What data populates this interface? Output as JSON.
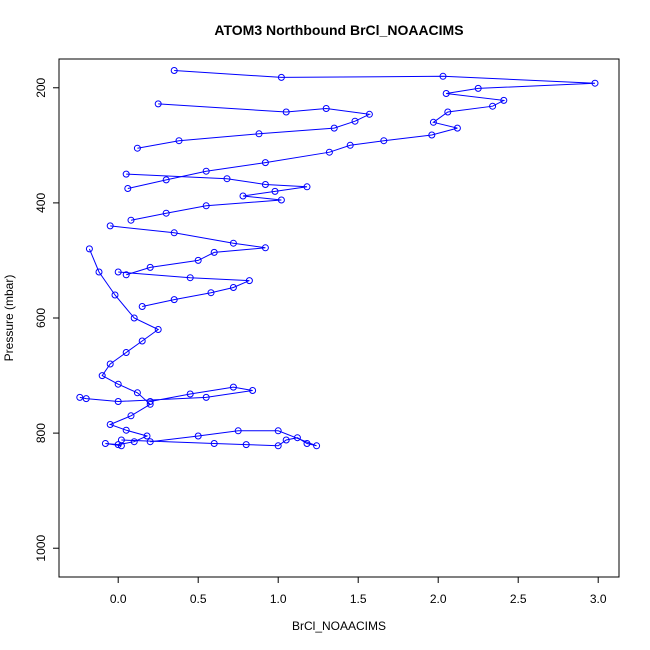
{
  "chart_data": {
    "type": "line",
    "title": "ATOM3 Northbound BrCl_NOAACIMS",
    "xlabel": "BrCl_NOAACIMS",
    "ylabel": "Pressure (mbar)",
    "xlim": [
      -0.37,
      3.13
    ],
    "ylim": [
      1050,
      150
    ],
    "y_reversed": true,
    "x_ticks": [
      "0.0",
      "0.5",
      "1.0",
      "1.5",
      "2.0",
      "2.5",
      "3.0"
    ],
    "x_tick_values": [
      0.0,
      0.5,
      1.0,
      1.5,
      2.0,
      2.5,
      3.0
    ],
    "y_ticks": [
      "200",
      "400",
      "600",
      "800",
      "1000"
    ],
    "y_tick_values": [
      200,
      400,
      600,
      800,
      1000
    ],
    "grid": false,
    "legend": "none",
    "marker": "open-circle",
    "color": "#0000ff",
    "series": [
      {
        "x": [
          0.35,
          1.02,
          2.03,
          2.98,
          2.25,
          2.05,
          2.41,
          2.34,
          2.06,
          1.97,
          2.12,
          1.96,
          1.66,
          1.45,
          1.32,
          0.92,
          0.55,
          0.3,
          0.06
        ],
        "y": [
          170,
          182,
          180,
          192,
          201,
          210,
          222,
          232,
          242,
          260,
          270,
          282,
          292,
          300,
          312,
          330,
          345,
          360,
          375
        ]
      },
      {
        "x": [
          0.25,
          1.05,
          1.3,
          1.57,
          1.48,
          1.35,
          0.88,
          0.38,
          0.12
        ],
        "y": [
          228,
          242,
          236,
          246,
          258,
          270,
          280,
          292,
          305
        ]
      },
      {
        "x": [
          0.05,
          0.68,
          0.92,
          1.18,
          0.98,
          0.78,
          1.02,
          0.55,
          0.3,
          0.08
        ],
        "y": [
          350,
          358,
          368,
          372,
          380,
          388,
          395,
          405,
          418,
          430
        ]
      },
      {
        "x": [
          -0.05,
          0.35,
          0.72,
          0.92,
          0.6,
          0.5,
          0.2,
          0.05
        ],
        "y": [
          440,
          452,
          470,
          478,
          486,
          500,
          512,
          525
        ]
      },
      {
        "x": [
          0.0,
          0.45,
          0.82,
          0.72,
          0.58,
          0.35,
          0.15
        ],
        "y": [
          520,
          530,
          535,
          547,
          556,
          568,
          580
        ]
      },
      {
        "x": [
          -0.24,
          -0.2,
          0.0,
          0.55,
          0.84,
          0.72,
          0.45,
          0.2
        ],
        "y": [
          738,
          740,
          745,
          738,
          726,
          720,
          732,
          745
        ]
      },
      {
        "x": [
          0.02,
          0.6,
          0.8,
          1.0,
          1.05,
          1.12,
          1.18,
          1.24,
          1.0,
          0.75,
          0.5,
          0.2
        ],
        "y": [
          812,
          818,
          820,
          822,
          812,
          808,
          818,
          822,
          796,
          796,
          805,
          815
        ]
      },
      {
        "x": [
          -0.18,
          -0.12,
          -0.02,
          0.1,
          0.25,
          0.15,
          0.05,
          -0.05,
          -0.1,
          0.0,
          0.12,
          0.2,
          0.08,
          -0.05,
          0.05,
          0.18,
          0.1,
          0.0,
          -0.08,
          0.02
        ],
        "y": [
          480,
          520,
          560,
          600,
          620,
          640,
          660,
          680,
          700,
          715,
          730,
          750,
          770,
          785,
          795,
          805,
          815,
          820,
          818,
          822
        ]
      }
    ]
  }
}
